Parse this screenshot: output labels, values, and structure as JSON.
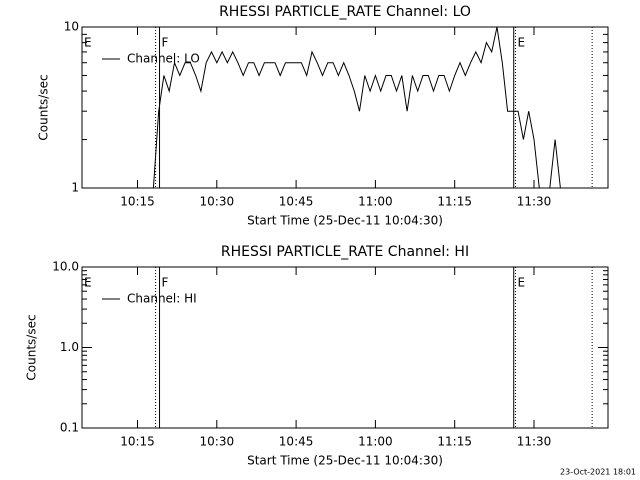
{
  "chart_data": [
    {
      "type": "line",
      "title": "RHESSI PARTICLE_RATE Channel: LO",
      "x_label": "Start Time (25-Dec-11 10:04:30)",
      "y_label": "Counts/sec",
      "xlim": [
        "10:04:30",
        "11:44:00"
      ],
      "xticks": [
        "10:15",
        "10:30",
        "10:45",
        "11:00",
        "11:15",
        "11:30"
      ],
      "ylim": [
        1,
        10
      ],
      "yticks": [
        1,
        10
      ],
      "log_y": true,
      "legend": "upper left",
      "markers": [
        {
          "x": "10:04:30",
          "label": "E",
          "dash": "solid"
        },
        {
          "x": "10:18:25",
          "dash": "dotted"
        },
        {
          "x": "10:19:10",
          "label": "F",
          "dash": "solid"
        },
        {
          "x": "11:26:10",
          "dash": "solid"
        },
        {
          "x": "11:26:30",
          "label": "E",
          "dash": "dotted"
        },
        {
          "x": "11:41:00",
          "dash": "dotted"
        }
      ],
      "series": [
        {
          "name": "Channel: LO",
          "color": "#000000",
          "x": [
            "10:18",
            "10:19",
            "10:20",
            "10:21",
            "10:22",
            "10:23",
            "10:24",
            "10:25",
            "10:26",
            "10:27",
            "10:28",
            "10:29",
            "10:30",
            "10:31",
            "10:32",
            "10:33",
            "10:34",
            "10:35",
            "10:36",
            "10:37",
            "10:38",
            "10:39",
            "10:40",
            "10:41",
            "10:42",
            "10:43",
            "10:44",
            "10:45",
            "10:46",
            "10:47",
            "10:48",
            "10:49",
            "10:50",
            "10:51",
            "10:52",
            "10:53",
            "10:54",
            "10:55",
            "10:56",
            "10:57",
            "10:58",
            "10:59",
            "11:00",
            "11:01",
            "11:02",
            "11:03",
            "11:04",
            "11:05",
            "11:06",
            "11:07",
            "11:08",
            "11:09",
            "11:10",
            "11:11",
            "11:12",
            "11:13",
            "11:14",
            "11:15",
            "11:16",
            "11:17",
            "11:18",
            "11:19",
            "11:20",
            "11:21",
            "11:22",
            "11:23",
            "11:24",
            "11:25",
            "11:26",
            "11:27",
            "11:28",
            "11:29",
            "11:30",
            "11:31",
            "11:32",
            "11:33",
            "11:34",
            "11:35"
          ],
          "values": [
            1,
            3,
            5,
            4,
            6,
            5,
            6,
            6,
            5,
            4,
            6,
            7,
            6,
            7,
            6,
            7,
            6,
            5,
            6,
            6,
            5,
            6,
            6,
            6,
            5,
            6,
            6,
            6,
            6,
            5,
            7,
            6,
            5,
            6,
            6,
            5,
            6,
            5,
            4,
            3,
            5,
            4,
            5,
            4,
            5,
            5,
            4,
            5,
            3,
            5,
            4,
            5,
            5,
            4,
            5,
            5,
            4,
            5,
            6,
            5,
            6,
            7,
            6,
            8,
            7,
            10,
            6,
            3,
            3,
            3,
            2,
            3,
            2,
            1,
            1,
            1,
            2,
            1
          ]
        }
      ]
    },
    {
      "type": "line",
      "title": "RHESSI PARTICLE_RATE Channel: HI",
      "x_label": "Start Time (25-Dec-11 10:04:30)",
      "y_label": "Counts/sec",
      "xlim": [
        "10:04:30",
        "11:44:00"
      ],
      "xticks": [
        "10:15",
        "10:30",
        "10:45",
        "11:00",
        "11:15",
        "11:30"
      ],
      "ylim": [
        0.1,
        10
      ],
      "yticks": [
        0.1,
        {
          "value": 1,
          "label": "1.0"
        },
        {
          "value": 10,
          "label": "10.0"
        }
      ],
      "log_y": true,
      "legend": "upper left",
      "markers": [
        {
          "x": "10:04:30",
          "label": "E",
          "dash": "solid"
        },
        {
          "x": "10:18:25",
          "dash": "dotted"
        },
        {
          "x": "10:19:10",
          "label": "F",
          "dash": "solid"
        },
        {
          "x": "11:26:10",
          "dash": "solid"
        },
        {
          "x": "11:26:30",
          "label": "E",
          "dash": "dotted"
        },
        {
          "x": "11:41:00",
          "dash": "dotted"
        }
      ],
      "series": [
        {
          "name": "Channel: HI",
          "color": "#000000"
        }
      ]
    }
  ],
  "footer": "23-Oct-2021 18:01"
}
